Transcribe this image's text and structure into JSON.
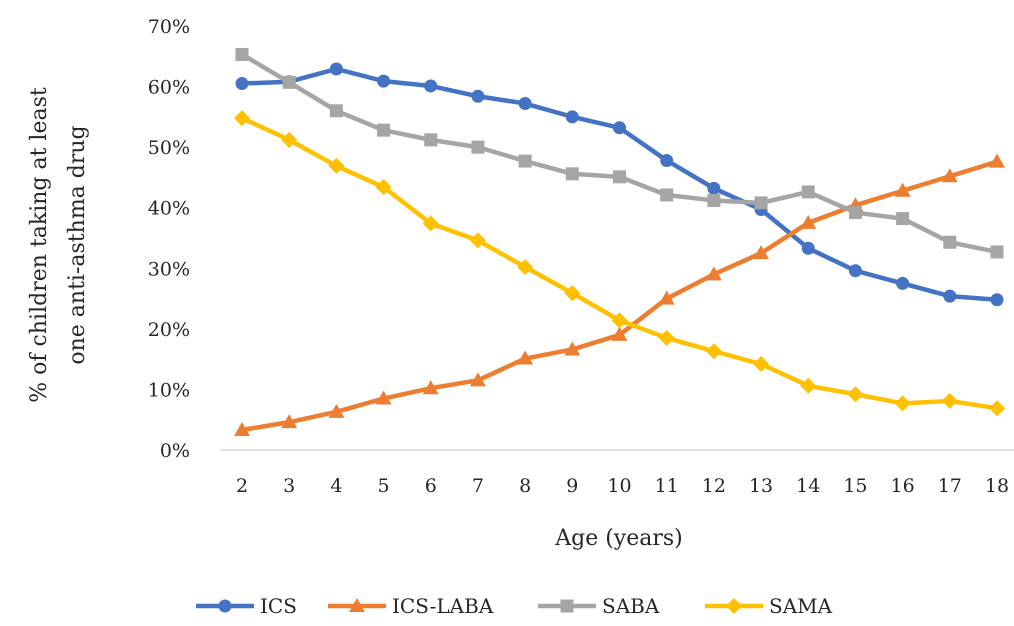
{
  "chart_data": {
    "type": "line",
    "title": "",
    "xlabel": "Age (years)",
    "ylabel_lines": [
      "% of children taking at least",
      "one anti-asthma drug"
    ],
    "x": [
      "2",
      "3",
      "4",
      "5",
      "6",
      "7",
      "8",
      "9",
      "10",
      "11",
      "12",
      "13",
      "14",
      "15",
      "16",
      "17",
      "18"
    ],
    "ylim": [
      0,
      70
    ],
    "yticks": [
      "0%",
      "10%",
      "20%",
      "30%",
      "40%",
      "50%",
      "60%",
      "70%"
    ],
    "grid": false,
    "legend_position": "bottom",
    "series": [
      {
        "name": "ICS",
        "color": "#4472C4",
        "marker": "circle",
        "values": [
          60.5,
          60.8,
          62.9,
          60.9,
          60.1,
          58.4,
          57.2,
          55.0,
          53.2,
          47.8,
          43.2,
          39.7,
          33.3,
          29.6,
          27.5,
          25.4,
          24.8
        ]
      },
      {
        "name": "ICS-LABA",
        "color": "#ED7D31",
        "marker": "triangle",
        "values": [
          3.3,
          4.6,
          6.3,
          8.5,
          10.2,
          11.5,
          15.1,
          16.6,
          19.0,
          25.0,
          29.0,
          32.5,
          37.5,
          40.4,
          42.8,
          45.2,
          47.6
        ]
      },
      {
        "name": "SABA",
        "color": "#A5A5A5",
        "marker": "square",
        "values": [
          65.3,
          60.7,
          56.0,
          52.8,
          51.2,
          50.0,
          47.7,
          45.6,
          45.1,
          42.1,
          41.2,
          40.8,
          42.6,
          39.2,
          38.2,
          34.3,
          32.7
        ]
      },
      {
        "name": "SAMA",
        "color": "#FFC000",
        "marker": "diamond",
        "values": [
          54.8,
          51.2,
          46.9,
          43.4,
          37.4,
          34.6,
          30.2,
          25.9,
          21.4,
          18.5,
          16.3,
          14.2,
          10.6,
          9.2,
          7.7,
          8.1,
          6.9
        ]
      }
    ]
  }
}
